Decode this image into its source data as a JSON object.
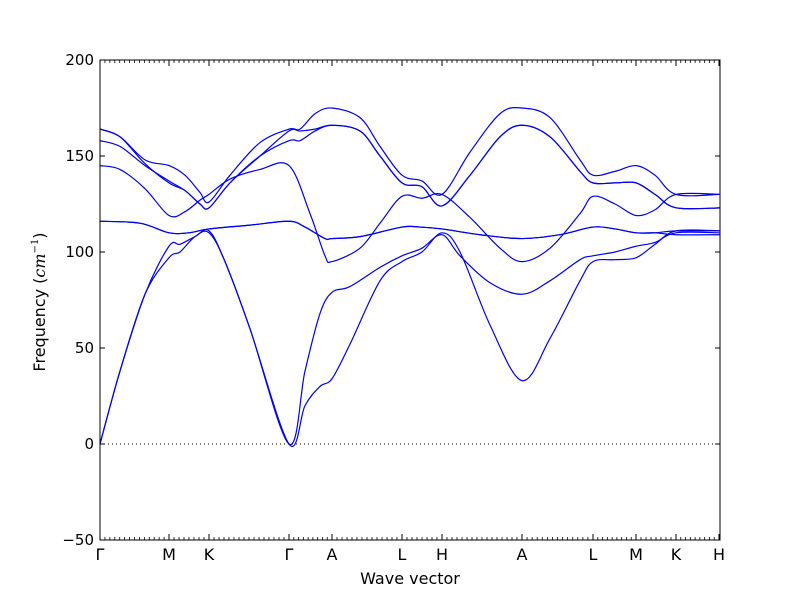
{
  "chart_data": {
    "type": "line",
    "title": "",
    "xlabel": "Wave vector",
    "ylabel_main": "Frequency (",
    "ylabel_unit": "cm",
    "ylabel_exp": "−1",
    "ylabel_close": ")",
    "ylim": [
      -50,
      200
    ],
    "yticks": [
      -50,
      0,
      50,
      100,
      150,
      200
    ],
    "ytick_labels": [
      "−50",
      "0",
      "50",
      "100",
      "150",
      "200"
    ],
    "xlim": [
      0,
      620
    ],
    "high_symmetry_points": [
      {
        "label": "Γ",
        "x": 0
      },
      {
        "label": "M",
        "x": 69
      },
      {
        "label": "K",
        "x": 109
      },
      {
        "label": "Γ",
        "x": 189
      },
      {
        "label": "A",
        "x": 232
      },
      {
        "label": "L",
        "x": 302
      },
      {
        "label": "H",
        "x": 342
      },
      {
        "label": "A",
        "x": 422
      },
      {
        "label": "L",
        "x": 493
      },
      {
        "label": "M",
        "x": 536
      },
      {
        "label": "K",
        "x": 576
      },
      {
        "label": "H",
        "x": 619
      }
    ],
    "zero_line": true,
    "grid": false,
    "series_color": "#0000ee",
    "bands": [
      {
        "points": [
          [
            0,
            0
          ],
          [
            20,
            38
          ],
          [
            45,
            78
          ],
          [
            69,
            97
          ],
          [
            80,
            100
          ],
          [
            95,
            108
          ],
          [
            109,
            110
          ],
          [
            125,
            95
          ],
          [
            150,
            60
          ],
          [
            189,
            0
          ],
          [
            205,
            20
          ],
          [
            220,
            30
          ],
          [
            232,
            34
          ],
          [
            250,
            52
          ],
          [
            280,
            85
          ],
          [
            302,
            95
          ],
          [
            322,
            100
          ],
          [
            342,
            110
          ],
          [
            360,
            100
          ],
          [
            390,
            62
          ],
          [
            422,
            33
          ],
          [
            450,
            55
          ],
          [
            480,
            85
          ],
          [
            493,
            95
          ],
          [
            515,
            96
          ],
          [
            536,
            97
          ],
          [
            555,
            104
          ],
          [
            576,
            111
          ],
          [
            620,
            111
          ]
        ]
      },
      {
        "points": [
          [
            0,
            0
          ],
          [
            20,
            38
          ],
          [
            45,
            78
          ],
          [
            69,
            103
          ],
          [
            80,
            104
          ],
          [
            95,
            108
          ],
          [
            109,
            111
          ],
          [
            125,
            95
          ],
          [
            150,
            60
          ],
          [
            189,
            0
          ],
          [
            205,
            38
          ],
          [
            220,
            68
          ],
          [
            232,
            79
          ],
          [
            250,
            82
          ],
          [
            280,
            92
          ],
          [
            302,
            98
          ],
          [
            322,
            102
          ],
          [
            342,
            109
          ],
          [
            360,
            98
          ],
          [
            390,
            84
          ],
          [
            422,
            78
          ],
          [
            450,
            85
          ],
          [
            480,
            96
          ],
          [
            493,
            98
          ],
          [
            515,
            100
          ],
          [
            536,
            103
          ],
          [
            555,
            105
          ],
          [
            576,
            110
          ],
          [
            620,
            110
          ]
        ]
      },
      {
        "points": [
          [
            0,
            116
          ],
          [
            40,
            115
          ],
          [
            69,
            110
          ],
          [
            89,
            110
          ],
          [
            109,
            112
          ],
          [
            150,
            114
          ],
          [
            189,
            116
          ],
          [
            205,
            113
          ],
          [
            225,
            107
          ],
          [
            232,
            107
          ],
          [
            260,
            108
          ],
          [
            302,
            113
          ],
          [
            320,
            113
          ],
          [
            342,
            112
          ],
          [
            380,
            109
          ],
          [
            422,
            107
          ],
          [
            460,
            109
          ],
          [
            493,
            113
          ],
          [
            515,
            112
          ],
          [
            536,
            110
          ],
          [
            555,
            110
          ],
          [
            576,
            111
          ],
          [
            620,
            111
          ]
        ]
      },
      {
        "points": [
          [
            0,
            116
          ],
          [
            40,
            115
          ],
          [
            69,
            110
          ],
          [
            89,
            110
          ],
          [
            109,
            112
          ],
          [
            150,
            114
          ],
          [
            189,
            116
          ],
          [
            205,
            113
          ],
          [
            225,
            107
          ],
          [
            232,
            107
          ],
          [
            260,
            108
          ],
          [
            302,
            113
          ],
          [
            320,
            113
          ],
          [
            342,
            112
          ],
          [
            380,
            109
          ],
          [
            422,
            107
          ],
          [
            460,
            109
          ],
          [
            493,
            113
          ],
          [
            515,
            112
          ],
          [
            536,
            110
          ],
          [
            555,
            110
          ],
          [
            576,
            109
          ],
          [
            620,
            109
          ]
        ]
      },
      {
        "points": [
          [
            0,
            145
          ],
          [
            20,
            143
          ],
          [
            45,
            133
          ],
          [
            69,
            119
          ],
          [
            85,
            121
          ],
          [
            100,
            127
          ],
          [
            109,
            130
          ],
          [
            130,
            138
          ],
          [
            160,
            143
          ],
          [
            189,
            145
          ],
          [
            210,
            120
          ],
          [
            225,
            98
          ],
          [
            232,
            95
          ],
          [
            260,
            102
          ],
          [
            280,
            115
          ],
          [
            302,
            129
          ],
          [
            322,
            128
          ],
          [
            342,
            130
          ],
          [
            370,
            118
          ],
          [
            400,
            102
          ],
          [
            422,
            95
          ],
          [
            450,
            102
          ],
          [
            480,
            120
          ],
          [
            493,
            129
          ],
          [
            515,
            125
          ],
          [
            536,
            119
          ],
          [
            555,
            122
          ],
          [
            576,
            130
          ],
          [
            620,
            130
          ]
        ]
      },
      {
        "points": [
          [
            0,
            158
          ],
          [
            20,
            155
          ],
          [
            45,
            145
          ],
          [
            69,
            137
          ],
          [
            85,
            132
          ],
          [
            100,
            125
          ],
          [
            109,
            123
          ],
          [
            130,
            136
          ],
          [
            160,
            150
          ],
          [
            189,
            158
          ],
          [
            200,
            158
          ],
          [
            215,
            163
          ],
          [
            232,
            166
          ],
          [
            260,
            163
          ],
          [
            280,
            150
          ],
          [
            302,
            136
          ],
          [
            322,
            134
          ],
          [
            342,
            124
          ],
          [
            370,
            140
          ],
          [
            400,
            160
          ],
          [
            422,
            166
          ],
          [
            450,
            160
          ],
          [
            480,
            142
          ],
          [
            493,
            136
          ],
          [
            515,
            136
          ],
          [
            536,
            136
          ],
          [
            555,
            130
          ],
          [
            576,
            123
          ],
          [
            620,
            123
          ]
        ]
      },
      {
        "points": [
          [
            0,
            164
          ],
          [
            20,
            160
          ],
          [
            45,
            146
          ],
          [
            69,
            136
          ],
          [
            85,
            132
          ],
          [
            100,
            125
          ],
          [
            109,
            123
          ],
          [
            130,
            136
          ],
          [
            160,
            150
          ],
          [
            189,
            163
          ],
          [
            200,
            163
          ],
          [
            215,
            164
          ],
          [
            232,
            166
          ],
          [
            260,
            163
          ],
          [
            280,
            150
          ],
          [
            302,
            136
          ],
          [
            322,
            134
          ],
          [
            342,
            124
          ],
          [
            370,
            140
          ],
          [
            400,
            160
          ],
          [
            422,
            166
          ],
          [
            450,
            160
          ],
          [
            480,
            142
          ],
          [
            493,
            136
          ],
          [
            515,
            136
          ],
          [
            536,
            136
          ],
          [
            555,
            130
          ],
          [
            576,
            123
          ],
          [
            620,
            123
          ]
        ]
      },
      {
        "points": [
          [
            0,
            164
          ],
          [
            20,
            160
          ],
          [
            45,
            148
          ],
          [
            69,
            145
          ],
          [
            85,
            140
          ],
          [
            100,
            131
          ],
          [
            109,
            126
          ],
          [
            130,
            140
          ],
          [
            160,
            157
          ],
          [
            189,
            164
          ],
          [
            200,
            164
          ],
          [
            215,
            172
          ],
          [
            232,
            175
          ],
          [
            260,
            170
          ],
          [
            280,
            155
          ],
          [
            302,
            140
          ],
          [
            322,
            137
          ],
          [
            342,
            130
          ],
          [
            370,
            152
          ],
          [
            400,
            172
          ],
          [
            422,
            175
          ],
          [
            450,
            170
          ],
          [
            480,
            148
          ],
          [
            493,
            140
          ],
          [
            515,
            142
          ],
          [
            536,
            145
          ],
          [
            555,
            140
          ],
          [
            576,
            130
          ],
          [
            620,
            130
          ]
        ]
      }
    ]
  }
}
